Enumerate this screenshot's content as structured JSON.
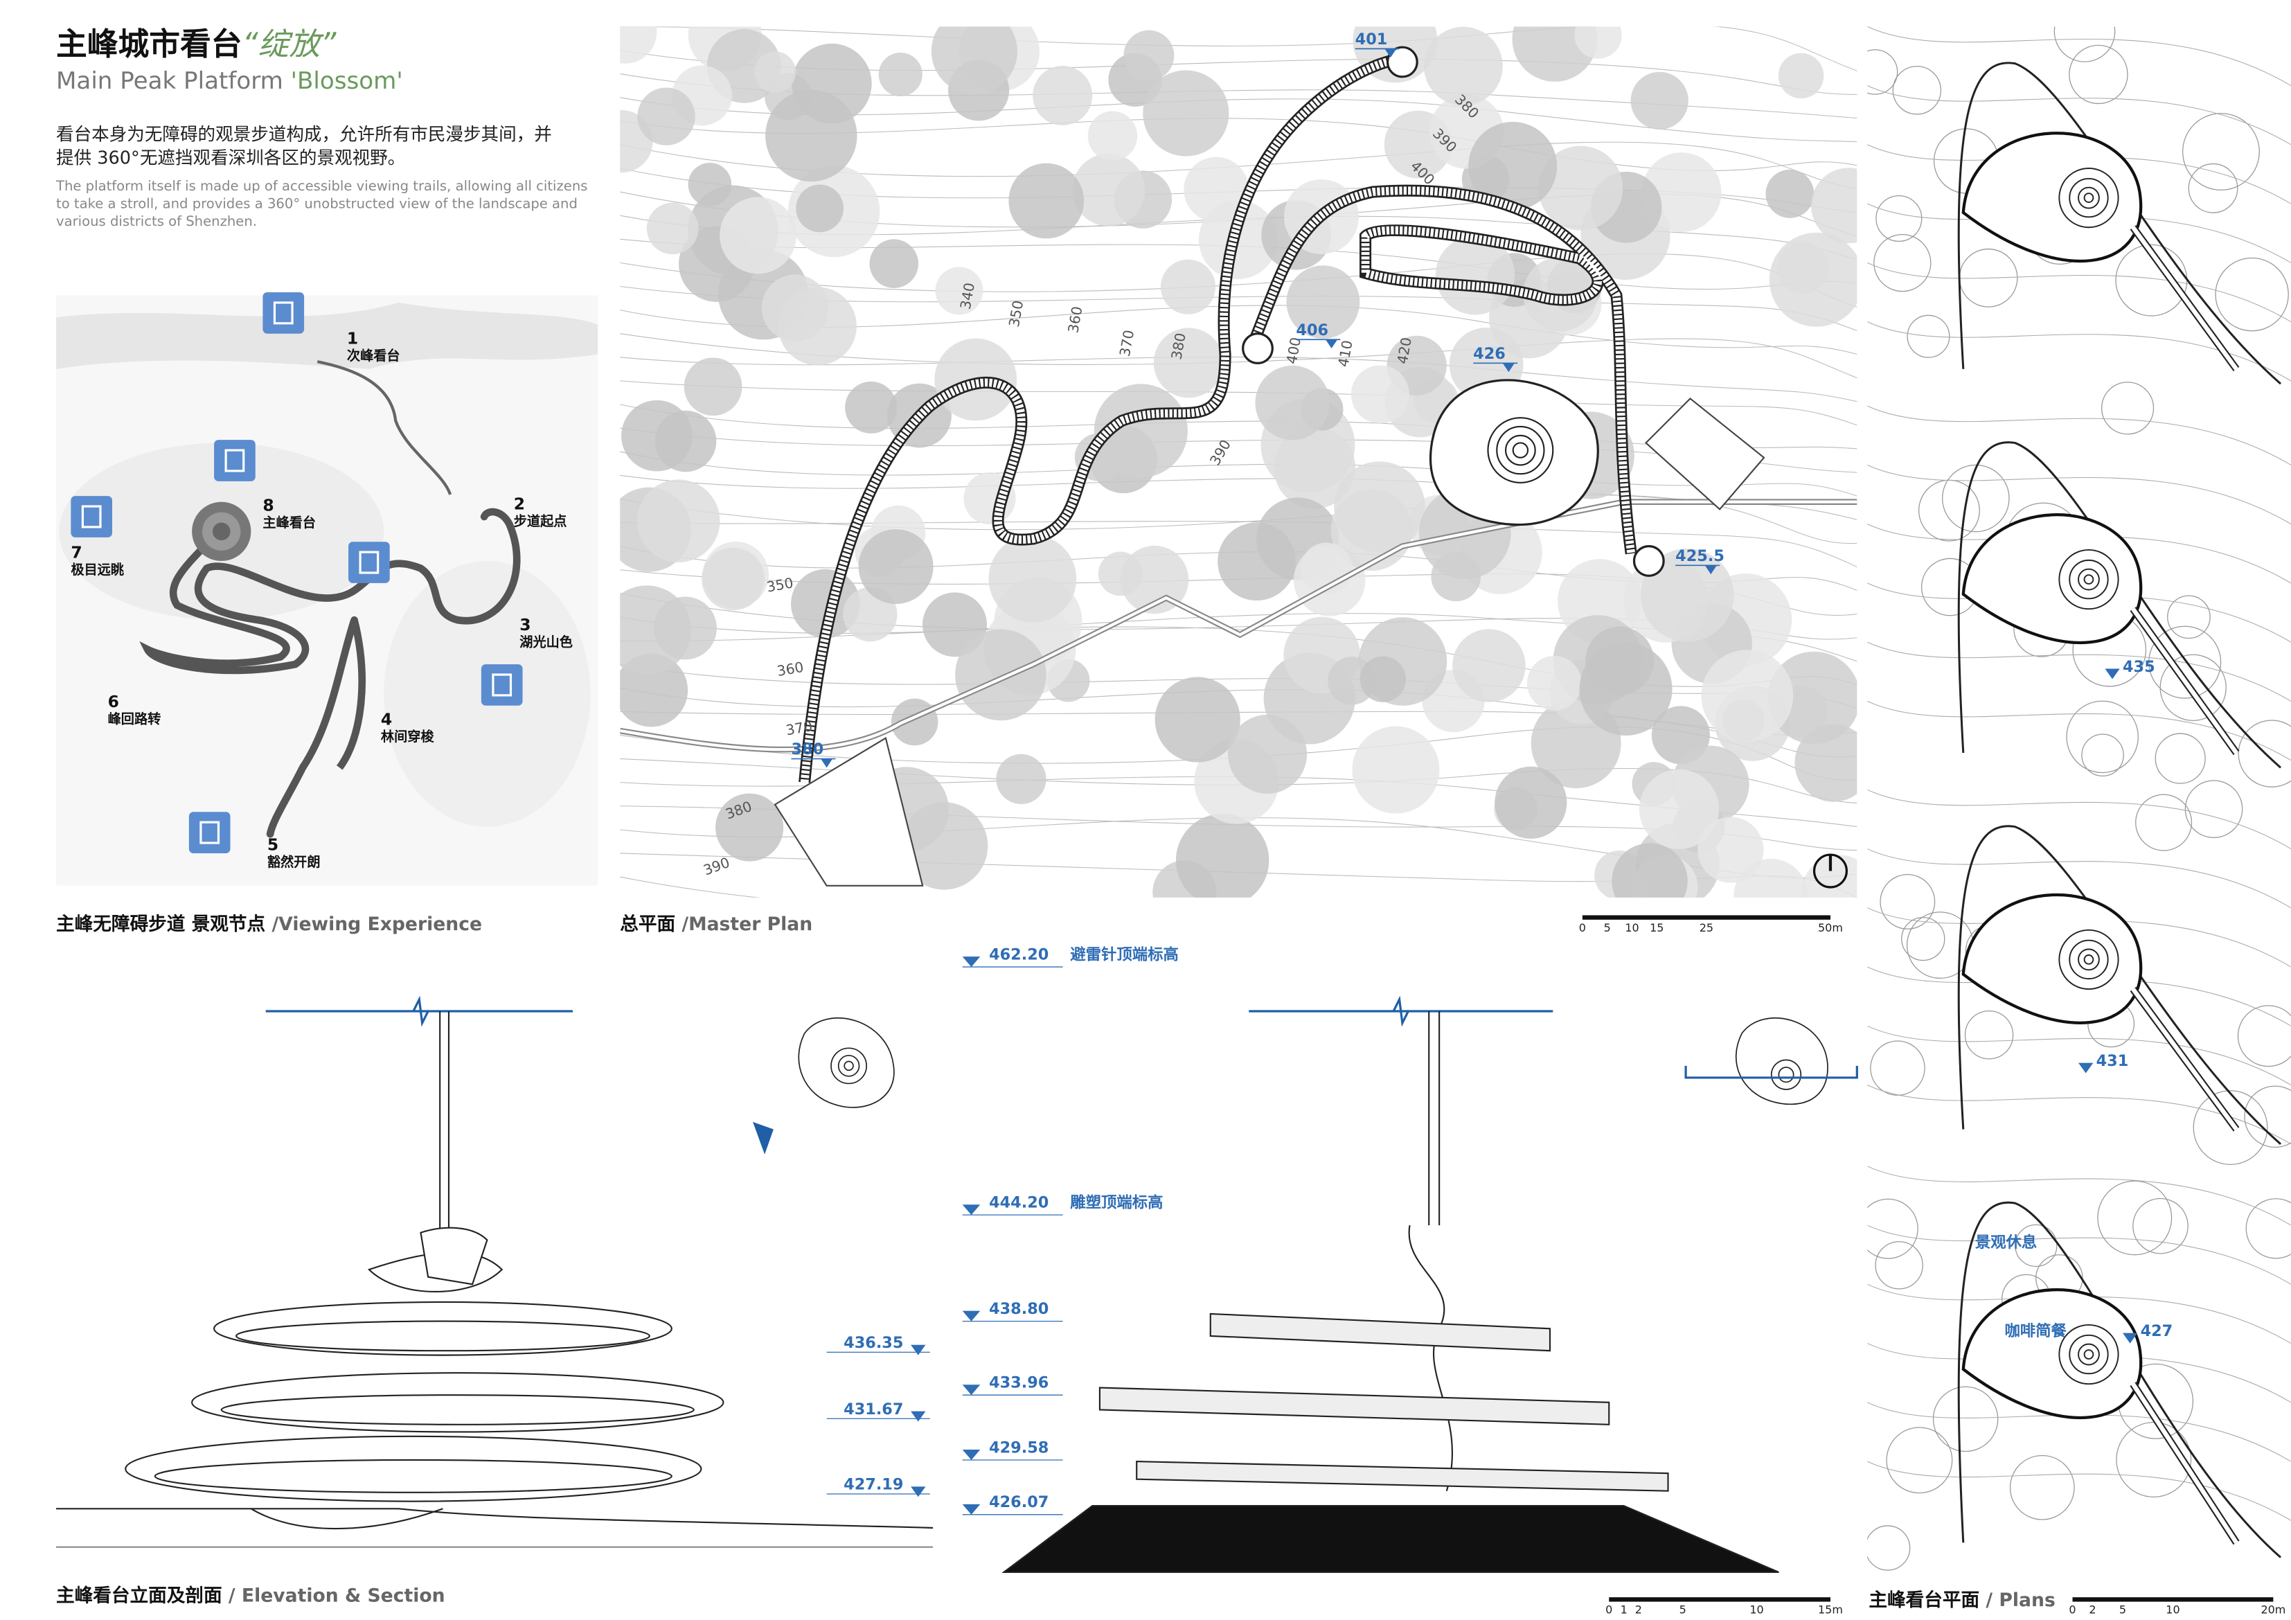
{
  "header": {
    "title_cn": "主峰城市看台",
    "title_cn_accent": "“绽放”",
    "title_en": "Main Peak Platform ",
    "title_en_accent": "'Blossom'",
    "desc_cn": [
      "看台本身为无障碍的观景步道构成，允许所有市民漫步其间，并",
      "提供 360°无遮挡观看深圳各区的景观视野。"
    ],
    "desc_en": [
      "The platform itself is made up of accessible viewing trails, allowing all citizens",
      "to take a stroll, and provides a 360° unobstructed view of the landscape and",
      "various districts of Shenzhen."
    ]
  },
  "viewing": {
    "caption_cn": "主峰无障碍步道 景观节点",
    "caption_en": "/Viewing Experience",
    "nodes": [
      {
        "num": "1",
        "label": "次峰看台"
      },
      {
        "num": "2",
        "label": "步道起点"
      },
      {
        "num": "3",
        "label": "湖光山色"
      },
      {
        "num": "4",
        "label": "林间穿梭"
      },
      {
        "num": "5",
        "label": "豁然开朗"
      },
      {
        "num": "6",
        "label": "峰回路转"
      },
      {
        "num": "7",
        "label": "极目远眺"
      },
      {
        "num": "8",
        "label": "主峰看台"
      }
    ]
  },
  "master_plan": {
    "caption_cn": "总平面",
    "caption_en": "/Master Plan",
    "contour_labels": [
      "340",
      "350",
      "360",
      "370",
      "380",
      "390",
      "400",
      "410",
      "420",
      "380",
      "390",
      "400",
      "350",
      "360",
      "370",
      "380",
      "390"
    ],
    "elevation_marks": [
      "401",
      "406",
      "426",
      "425.5",
      "380"
    ],
    "scale": [
      "0",
      "5",
      "10",
      "15",
      "25",
      "50m"
    ]
  },
  "elevation": {
    "caption_cn": "主峰看台立面及剖面",
    "caption_en": "/ Elevation & Section",
    "left_levels": [
      "436.35",
      "431.67",
      "427.19"
    ],
    "section_levels": [
      {
        "value": "462.20",
        "note": "避雷针顶端标高"
      },
      {
        "value": "444.20",
        "note": "雕塑顶端标高"
      },
      {
        "value": "438.80"
      },
      {
        "value": "433.96"
      },
      {
        "value": "429.58"
      },
      {
        "value": "426.07"
      }
    ],
    "scale": [
      "0",
      "1",
      "2",
      "5",
      "10",
      "15m"
    ]
  },
  "plans": {
    "caption_cn": "主峰看台平面",
    "caption_en": "/ Plans",
    "marks": [
      "435",
      "431",
      "427"
    ],
    "labels": [
      "景观休息",
      "咖啡简餐"
    ],
    "scale": [
      "0",
      "2",
      "5",
      "10",
      "20m"
    ]
  }
}
